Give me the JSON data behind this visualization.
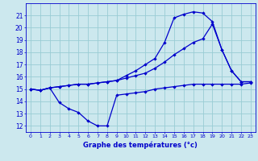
{
  "xlabel": "Graphe des températures (°c)",
  "xlim": [
    -0.5,
    23.5
  ],
  "ylim": [
    11.5,
    22.0
  ],
  "yticks": [
    12,
    13,
    14,
    15,
    16,
    17,
    18,
    19,
    20,
    21
  ],
  "xticks": [
    0,
    1,
    2,
    3,
    4,
    5,
    6,
    7,
    8,
    9,
    10,
    11,
    12,
    13,
    14,
    15,
    16,
    17,
    18,
    19,
    20,
    21,
    22,
    23
  ],
  "bg_color": "#cce8ee",
  "grid_color": "#99ccd4",
  "line_color": "#0000cc",
  "line_min_x": [
    0,
    1,
    2,
    3,
    4,
    5,
    6,
    7,
    8,
    9,
    10,
    11,
    12,
    13,
    14,
    15,
    16,
    17,
    18,
    19,
    20,
    21,
    22,
    23
  ],
  "line_min_y": [
    15.0,
    14.9,
    15.1,
    13.9,
    13.4,
    13.1,
    12.4,
    12.0,
    12.0,
    14.5,
    14.6,
    14.7,
    14.8,
    15.0,
    15.1,
    15.2,
    15.3,
    15.4,
    15.4,
    15.4,
    15.4,
    15.4,
    15.4,
    15.5
  ],
  "line_mid_x": [
    0,
    1,
    2,
    3,
    4,
    5,
    6,
    7,
    8,
    9,
    10,
    11,
    12,
    13,
    14,
    15,
    16,
    17,
    18,
    19,
    20,
    21,
    22,
    23
  ],
  "line_mid_y": [
    15.0,
    14.9,
    15.1,
    15.2,
    15.3,
    15.4,
    15.4,
    15.5,
    15.6,
    15.7,
    15.9,
    16.1,
    16.3,
    16.7,
    17.2,
    17.8,
    18.3,
    18.8,
    19.1,
    20.3,
    18.2,
    16.5,
    15.6,
    15.6
  ],
  "line_max_x": [
    0,
    1,
    2,
    3,
    4,
    5,
    6,
    7,
    8,
    9,
    10,
    11,
    12,
    13,
    14,
    15,
    16,
    17,
    18,
    19,
    20,
    21,
    22,
    23
  ],
  "line_max_y": [
    15.0,
    14.9,
    15.1,
    15.2,
    15.3,
    15.4,
    15.4,
    15.5,
    15.6,
    15.7,
    16.1,
    16.5,
    17.0,
    17.5,
    18.8,
    20.8,
    21.1,
    21.3,
    21.2,
    20.5,
    18.2,
    16.5,
    15.6,
    15.6
  ]
}
